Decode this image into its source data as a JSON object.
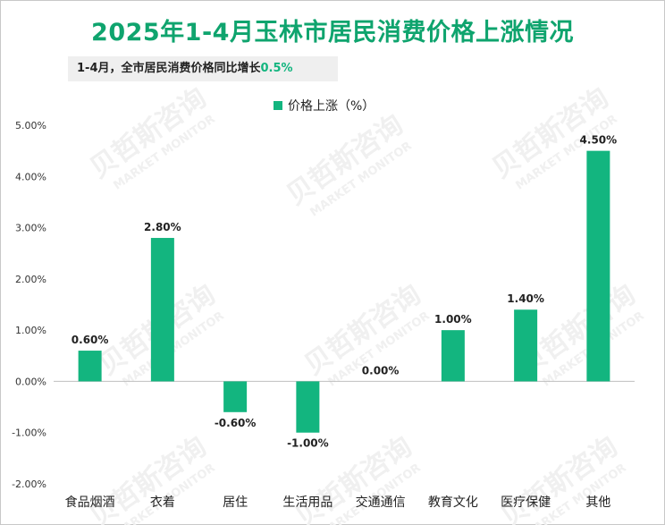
{
  "title": "2025年1-4月玉林市居民消费价格上涨情况",
  "subtitle": {
    "text": "1-4月，全市居民消费价格同比增长",
    "highlight": "0.5%"
  },
  "watermark": {
    "text": "贝哲斯咨询",
    "subtext": "MARKET MONITOR"
  },
  "colors": {
    "bar": "#13b57f",
    "title": "#0fa46e"
  },
  "chart_data": {
    "type": "bar",
    "title": "2025年1-4月玉林市居民消费价格上涨情况",
    "categories": [
      "食品烟酒",
      "衣着",
      "居住",
      "生活用品",
      "交通通信",
      "教育文化",
      "医疗保健",
      "其他"
    ],
    "series": [
      {
        "name": "价格上涨（%）",
        "values": [
          0.6,
          2.8,
          -0.6,
          -1.0,
          0.0,
          1.0,
          1.4,
          4.5
        ],
        "labels": [
          "0.60%",
          "2.80%",
          "-0.60%",
          "-1.00%",
          "0.00%",
          "1.00%",
          "1.40%",
          "4.50%"
        ]
      }
    ],
    "ylim": [
      -2.0,
      5.0
    ],
    "yticks": [
      "-2.00%",
      "-1.00%",
      "0.00%",
      "1.00%",
      "2.00%",
      "3.00%",
      "4.00%",
      "5.00%"
    ],
    "legend": "top-center",
    "grid": false
  }
}
